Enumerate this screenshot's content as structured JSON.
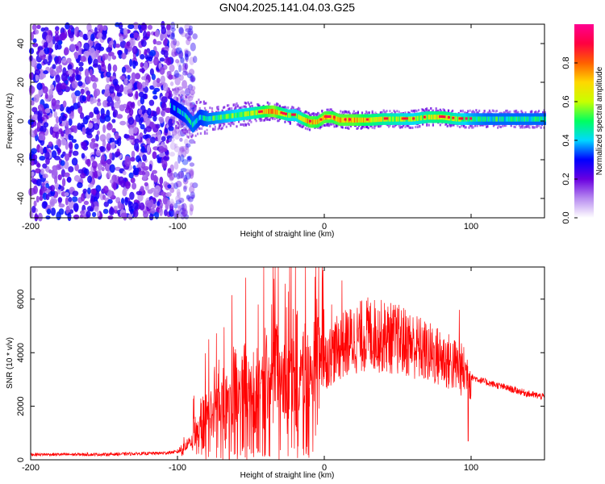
{
  "figure": {
    "title": "GN04.2025.141.04.03.G25"
  },
  "chart_data": [
    {
      "type": "heatmap",
      "xlabel": "Height of straight line (km)",
      "ylabel": "Frequency (Hz)",
      "xlim": [
        -200,
        150
      ],
      "ylim": [
        -50,
        50
      ],
      "xticks": [
        -200,
        -100,
        0,
        100
      ],
      "yticks": [
        -40,
        -20,
        0,
        20,
        40
      ],
      "colorbar": {
        "label": "Normalized spectral amplitude",
        "range": [
          0,
          1
        ],
        "ticks": [
          "0.0",
          "0.2",
          "0.4",
          "0.6",
          "0.8"
        ],
        "colors": [
          "#ffffff",
          "#b88cf0",
          "#6a00e0",
          "#0000ff",
          "#00d8ff",
          "#00ff60",
          "#c8ff00",
          "#ffd800",
          "#ff6000",
          "#ff0040",
          "#ff0090"
        ]
      },
      "noise_region_x": [
        -200,
        -92
      ],
      "ridge": {
        "x": [
          -105,
          -95,
          -90,
          -85,
          -80,
          -70,
          -60,
          -50,
          -40,
          -35,
          -30,
          -25,
          -20,
          -15,
          -10,
          -5,
          0,
          5,
          10,
          20,
          30,
          40,
          50,
          60,
          70,
          80,
          90,
          100,
          110,
          120,
          130,
          140,
          150
        ],
        "y": [
          8,
          3,
          -2,
          2,
          1,
          2,
          3,
          4,
          5,
          5,
          4,
          3,
          3,
          1,
          -0.5,
          -0.5,
          2,
          2,
          0.5,
          0.5,
          0.5,
          1,
          1,
          1,
          2,
          2,
          1,
          1,
          1,
          1,
          1,
          1,
          1
        ],
        "amplitude": [
          0.35,
          0.4,
          0.45,
          0.4,
          0.45,
          0.5,
          0.55,
          0.6,
          0.75,
          0.85,
          0.7,
          0.6,
          0.55,
          0.65,
          0.8,
          0.75,
          0.8,
          0.75,
          0.8,
          0.8,
          0.7,
          0.65,
          0.6,
          0.55,
          0.65,
          0.7,
          0.6,
          0.5,
          0.45,
          0.45,
          0.45,
          0.45,
          0.45
        ]
      }
    },
    {
      "type": "line",
      "xlabel": "Height of straight line (km)",
      "ylabel": "SNR (10 * v/v)",
      "xlim": [
        -200,
        150
      ],
      "ylim": [
        0,
        7200
      ],
      "xticks": [
        -200,
        -100,
        0,
        100
      ],
      "yticks": [
        0,
        2000,
        4000,
        6000
      ],
      "color": "#ff0000",
      "envelope": {
        "x": [
          -200,
          -150,
          -110,
          -100,
          -95,
          -90,
          -85,
          -80,
          -70,
          -60,
          -50,
          -40,
          -30,
          -20,
          -10,
          0,
          10,
          20,
          30,
          40,
          50,
          60,
          70,
          80,
          90,
          95,
          100,
          110,
          120,
          130,
          140,
          150
        ],
        "y": [
          200,
          200,
          250,
          300,
          500,
          800,
          1200,
          1700,
          2100,
          2500,
          2700,
          2900,
          3000,
          3100,
          3300,
          3700,
          4200,
          4500,
          4700,
          4600,
          4500,
          4300,
          4000,
          3800,
          3500,
          3300,
          3100,
          2900,
          2750,
          2600,
          2450,
          2350
        ]
      },
      "peaks": [
        {
          "x": -45,
          "y": 5800
        },
        {
          "x": -35,
          "y": 7200
        },
        {
          "x": 12,
          "y": 6700
        },
        {
          "x": 5,
          "y": 5800
        },
        {
          "x": 92,
          "y": 5600
        },
        {
          "x": 98,
          "y": 700
        }
      ]
    }
  ]
}
